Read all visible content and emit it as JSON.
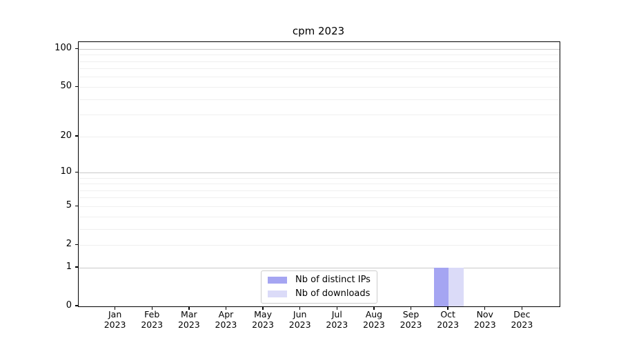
{
  "chart_data": {
    "type": "bar",
    "title": "cpm 2023",
    "categories": [
      "Jan 2023",
      "Feb 2023",
      "Mar 2023",
      "Apr 2023",
      "May 2023",
      "Jun 2023",
      "Jul 2023",
      "Aug 2023",
      "Sep 2023",
      "Oct 2023",
      "Nov 2023",
      "Dec 2023"
    ],
    "series": [
      {
        "name": "Nb of distinct IPs",
        "color": "#a5a5f2",
        "values": [
          0,
          0,
          0,
          0,
          0,
          0,
          0,
          0,
          0,
          1,
          0,
          0
        ]
      },
      {
        "name": "Nb of downloads",
        "color": "#dbdbf8",
        "values": [
          0,
          0,
          0,
          0,
          0,
          0,
          0,
          0,
          0,
          1,
          0,
          0
        ]
      }
    ],
    "xlabel": "",
    "ylabel": "",
    "yscale": "log1p",
    "ylim": [
      0,
      113.6
    ],
    "y_ticks": [
      0,
      1,
      2,
      5,
      10,
      20,
      50,
      100
    ],
    "y_major_gridlines": [
      1,
      10,
      100
    ],
    "y_minor_gridlines": [
      2,
      3,
      4,
      5,
      6,
      7,
      8,
      9,
      20,
      30,
      40,
      50,
      60,
      70,
      80,
      90
    ],
    "grid": "horizontal, major and minor, light gray",
    "legend_position": "lower center"
  }
}
